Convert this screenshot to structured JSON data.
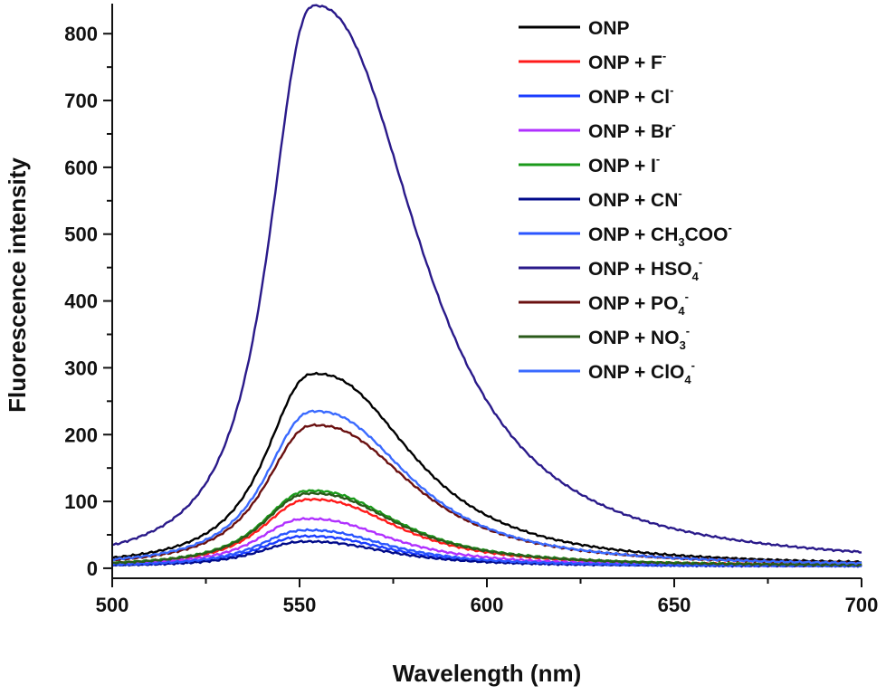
{
  "chart_data": {
    "type": "line",
    "title": "",
    "xlabel": "Wavelength (nm)",
    "ylabel": "Fluorescence intensity",
    "xlim": [
      500,
      700
    ],
    "ylim": [
      -15,
      845
    ],
    "x_ticks": [
      500,
      550,
      600,
      650,
      700
    ],
    "y_ticks": [
      0,
      100,
      200,
      300,
      400,
      500,
      600,
      700,
      800
    ],
    "grid": false,
    "legend_position": "top-right",
    "series": [
      {
        "name": "ONP",
        "label": {
          "base": "ONP",
          "sub": "",
          "tail": "",
          "sup": ""
        },
        "color": "#000000",
        "peak_x": 554,
        "peak_y": 291,
        "baseline": 3,
        "left_width": 15,
        "right_tail": 30
      },
      {
        "name": "ONP + F-",
        "label": {
          "base": "ONP + F",
          "sub": "",
          "tail": "",
          "sup": "-"
        },
        "color": "#ff1a1a",
        "peak_x": 553,
        "peak_y": 103,
        "baseline": 3,
        "left_width": 15,
        "right_tail": 27
      },
      {
        "name": "ONP + Cl-",
        "label": {
          "base": "ONP + Cl",
          "sub": "",
          "tail": "",
          "sup": "-"
        },
        "color": "#1a3cff",
        "peak_x": 552,
        "peak_y": 48,
        "baseline": 3,
        "left_width": 15,
        "right_tail": 25
      },
      {
        "name": "ONP + Br-",
        "label": {
          "base": "ONP + Br",
          "sub": "",
          "tail": "",
          "sup": "-"
        },
        "color": "#b030ff",
        "peak_x": 552,
        "peak_y": 74,
        "baseline": 3,
        "left_width": 15,
        "right_tail": 26
      },
      {
        "name": "ONP + I-",
        "label": {
          "base": "ONP + I",
          "sub": "",
          "tail": "",
          "sup": "-"
        },
        "color": "#1a9a1a",
        "peak_x": 553,
        "peak_y": 116,
        "baseline": 3,
        "left_width": 15,
        "right_tail": 27
      },
      {
        "name": "ONP + CN-",
        "label": {
          "base": "ONP + CN",
          "sub": "",
          "tail": "",
          "sup": "-"
        },
        "color": "#000a8a",
        "peak_x": 552,
        "peak_y": 40,
        "baseline": 3,
        "left_width": 15,
        "right_tail": 25
      },
      {
        "name": "ONP + CH3COO-",
        "label": {
          "base": "ONP + CH",
          "sub": "3",
          "tail": "COO",
          "sup": "-"
        },
        "color": "#2a55ff",
        "peak_x": 552,
        "peak_y": 57,
        "baseline": 3,
        "left_width": 15,
        "right_tail": 25
      },
      {
        "name": "ONP + HSO4-",
        "label": {
          "base": "ONP + HSO",
          "sub": "4",
          "tail": "",
          "sup": "-"
        },
        "color": "#2a1a8a",
        "peak_x": 554,
        "peak_y": 842,
        "baseline": 3,
        "left_width": 14,
        "right_tail": 32
      },
      {
        "name": "ONP + PO4-",
        "label": {
          "base": "ONP + PO",
          "sub": "4",
          "tail": "",
          "sup": "-"
        },
        "color": "#6a1010",
        "peak_x": 554,
        "peak_y": 214,
        "baseline": 3,
        "left_width": 15,
        "right_tail": 30
      },
      {
        "name": "ONP + NO3-",
        "label": {
          "base": "ONP + NO",
          "sub": "3",
          "tail": "",
          "sup": "-"
        },
        "color": "#2a5a1a",
        "peak_x": 553,
        "peak_y": 112,
        "baseline": 3,
        "left_width": 15,
        "right_tail": 27
      },
      {
        "name": "ONP + ClO4-",
        "label": {
          "base": "ONP + ClO",
          "sub": "4",
          "tail": "",
          "sup": "-"
        },
        "color": "#3a6aff",
        "peak_x": 554,
        "peak_y": 235,
        "baseline": 3,
        "left_width": 15,
        "right_tail": 29
      }
    ]
  }
}
